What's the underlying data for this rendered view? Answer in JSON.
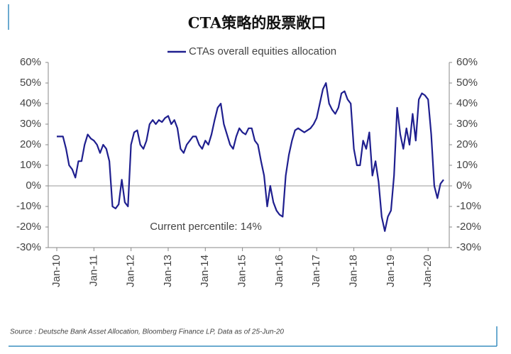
{
  "chart_data": {
    "type": "line",
    "title": "CTA策略的股票敞口",
    "annotation": "Current percentile: 14%",
    "source": "Source : Deutsche Bank Asset Allocation, Bloomberg Finance LP, Data as of 25-Jun-20",
    "categories": [
      "Jan-10",
      null,
      null,
      null,
      null,
      null,
      null,
      null,
      null,
      null,
      null,
      null,
      "Jan-11",
      null,
      null,
      null,
      null,
      null,
      null,
      null,
      null,
      null,
      null,
      null,
      "Jan-12",
      null,
      null,
      null,
      null,
      null,
      null,
      null,
      null,
      null,
      null,
      null,
      "Jan-13",
      null,
      null,
      null,
      null,
      null,
      null,
      null,
      null,
      null,
      null,
      null,
      "Jan-14",
      null,
      null,
      null,
      null,
      null,
      null,
      null,
      null,
      null,
      null,
      null,
      "Jan-15",
      null,
      null,
      null,
      null,
      null,
      null,
      null,
      null,
      null,
      null,
      null,
      "Jan-16",
      null,
      null,
      null,
      null,
      null,
      null,
      null,
      null,
      null,
      null,
      null,
      "Jan-17",
      null,
      null,
      null,
      null,
      null,
      null,
      null,
      null,
      null,
      null,
      null,
      "Jan-18",
      null,
      null,
      null,
      null,
      null,
      null,
      null,
      null,
      null,
      null,
      null,
      "Jan-19",
      null,
      null,
      null,
      null,
      null,
      null,
      null,
      null,
      null,
      null,
      null,
      "Jan-20",
      null,
      null,
      null,
      null,
      null
    ],
    "series": [
      {
        "name": "CTAs overall equities allocation",
        "color": "#1f1f8f",
        "values": [
          24,
          24,
          24,
          18,
          10,
          8,
          4,
          12,
          12,
          20,
          25,
          23,
          22,
          20,
          16,
          20,
          18,
          12,
          -10,
          -11,
          -9,
          3,
          -8,
          -10,
          20,
          26,
          27,
          20,
          18,
          22,
          30,
          32,
          30,
          32,
          31,
          33,
          34,
          30,
          32,
          28,
          18,
          16,
          20,
          22,
          24,
          24,
          20,
          18,
          22,
          20,
          25,
          32,
          38,
          40,
          30,
          25,
          20,
          18,
          24,
          28,
          26,
          25,
          28,
          28,
          22,
          20,
          12,
          5,
          -10,
          0,
          -8,
          -12,
          -14,
          -15,
          5,
          15,
          22,
          27,
          28,
          27,
          26,
          27,
          28,
          30,
          33,
          40,
          47,
          50,
          40,
          37,
          35,
          38,
          45,
          46,
          42,
          40,
          18,
          10,
          10,
          22,
          18,
          26,
          5,
          12,
          2,
          -15,
          -22,
          -15,
          -12,
          5,
          38,
          25,
          18,
          28,
          20,
          35,
          22,
          42,
          45,
          44,
          42,
          25,
          0,
          -6,
          1,
          3
        ]
      }
    ],
    "ylim": [
      -30,
      60
    ],
    "yticks": [
      {
        "value": -30,
        "label": "-30%"
      },
      {
        "value": -20,
        "label": "-20%"
      },
      {
        "value": -10,
        "label": "-10%"
      },
      {
        "value": 0,
        "label": "0%"
      },
      {
        "value": 10,
        "label": "10%"
      },
      {
        "value": 20,
        "label": "20%"
      },
      {
        "value": 30,
        "label": "30%"
      },
      {
        "value": 40,
        "label": "40%"
      },
      {
        "value": 50,
        "label": "50%"
      },
      {
        "value": 60,
        "label": "60%"
      }
    ],
    "y2lim": [
      -30,
      60
    ],
    "y2ticks": [
      {
        "value": -30,
        "label": "-30%"
      },
      {
        "value": -20,
        "label": "-20%"
      },
      {
        "value": -10,
        "label": "-10%"
      },
      {
        "value": 0,
        "label": "0%"
      },
      {
        "value": 10,
        "label": "10%"
      },
      {
        "value": 20,
        "label": "20%"
      },
      {
        "value": 30,
        "label": "30%"
      },
      {
        "value": 40,
        "label": "40%"
      },
      {
        "value": 50,
        "label": "50%"
      },
      {
        "value": 60,
        "label": "60%"
      }
    ],
    "legend": "top"
  }
}
